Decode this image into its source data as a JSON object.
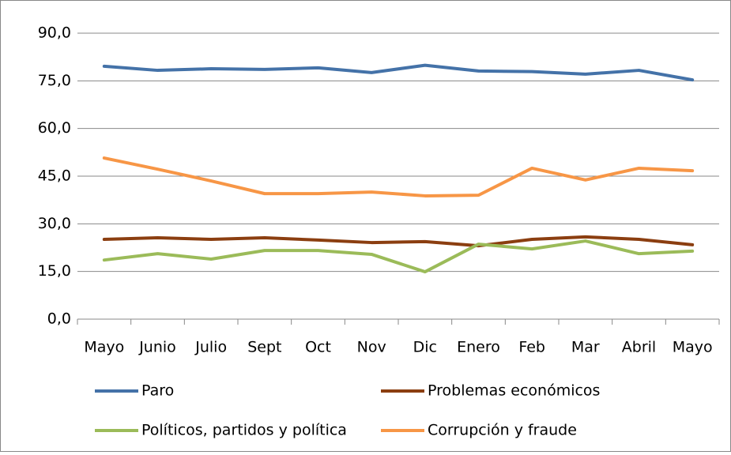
{
  "chart_data": {
    "type": "line",
    "categories": [
      "Mayo",
      "Junio",
      "Julio",
      "Sept",
      "Oct",
      "Nov",
      "Dic",
      "Enero",
      "Feb",
      "Mar",
      "Abril",
      "Mayo"
    ],
    "series": [
      {
        "name": "Paro",
        "color": "#4472a8",
        "values": [
          79.6,
          78.3,
          78.8,
          78.6,
          79.1,
          77.6,
          79.9,
          78.1,
          77.9,
          77.1,
          78.3,
          75.3
        ]
      },
      {
        "name": "Problemas económicos",
        "color": "#8b3e10",
        "values": [
          25.1,
          25.6,
          25.1,
          25.6,
          24.9,
          24.1,
          24.4,
          23.1,
          25.1,
          25.9,
          25.1,
          23.4
        ]
      },
      {
        "name": "Políticos, partidos y política",
        "color": "#9bbb59",
        "values": [
          18.6,
          20.6,
          18.9,
          21.6,
          21.6,
          20.4,
          14.9,
          23.6,
          22.1,
          24.6,
          20.6,
          21.4
        ]
      },
      {
        "name": "Corrupción y fraude",
        "color": "#f79646",
        "values": [
          50.7,
          47.2,
          43.5,
          39.5,
          39.5,
          40.0,
          38.8,
          39.0,
          47.5,
          43.8,
          47.5,
          46.7
        ]
      }
    ],
    "ylim": [
      0,
      90
    ],
    "yticks": [
      {
        "value": 0,
        "label": "0,0"
      },
      {
        "value": 15,
        "label": "15,0"
      },
      {
        "value": 30,
        "label": "30,0"
      },
      {
        "value": 45,
        "label": "45,0"
      },
      {
        "value": 60,
        "label": "60,0"
      },
      {
        "value": 75,
        "label": "75,0"
      },
      {
        "value": 90,
        "label": "90,0"
      }
    ],
    "grid": true,
    "legend": "bottom"
  }
}
